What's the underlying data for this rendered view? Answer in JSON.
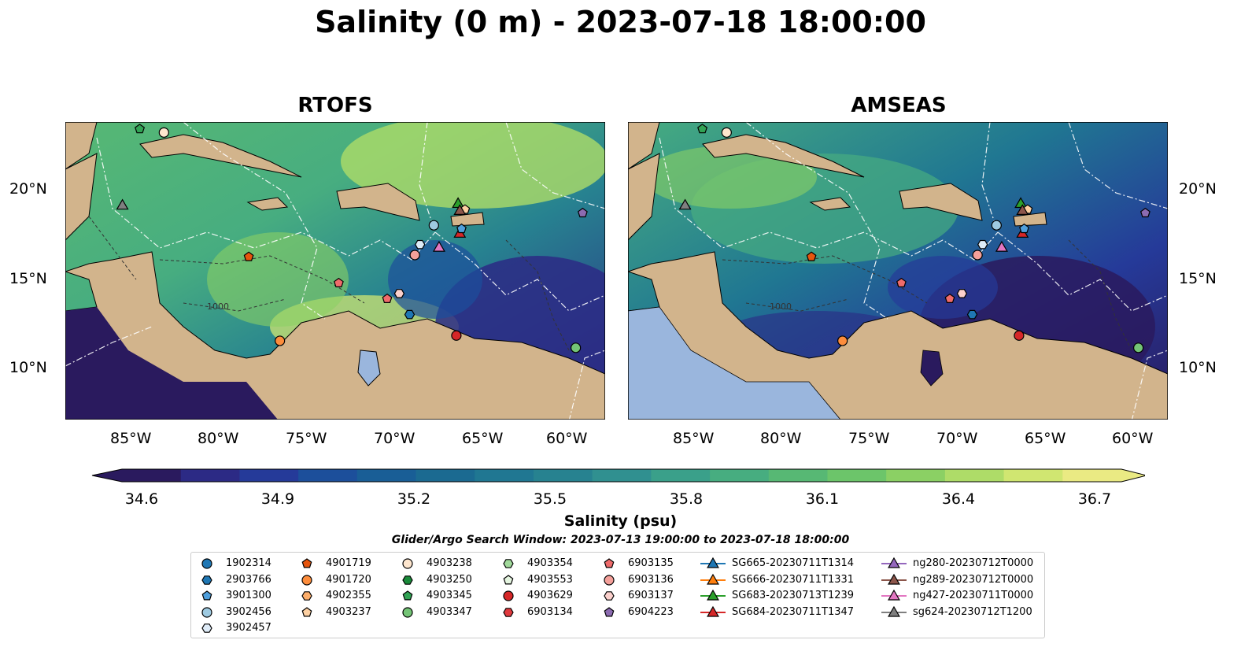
{
  "title": "Salinity (0 m) - 2023-07-18 18:00:00",
  "panels": [
    {
      "title": "RTOFS"
    },
    {
      "title": "AMSEAS"
    }
  ],
  "axes": {
    "lat_labels": [
      "20°N",
      "15°N",
      "10°N"
    ],
    "lon_labels": [
      "85°W",
      "80°W",
      "75°W",
      "70°W",
      "65°W",
      "60°W"
    ]
  },
  "colorbar": {
    "label": "Salinity (psu)",
    "vmin": 34.6,
    "vmax": 36.7,
    "ticks": [
      "34.6",
      "34.9",
      "35.2",
      "35.5",
      "35.8",
      "36.1",
      "36.4",
      "36.7"
    ],
    "colors": [
      "#2a1a5e",
      "#2c2a85",
      "#253a99",
      "#1c4f9b",
      "#195e96",
      "#1b6a91",
      "#207792",
      "#278290",
      "#309090",
      "#3aa08a",
      "#47ad80",
      "#57b874",
      "#6cc56a",
      "#8bd064",
      "#aedc68",
      "#d0e671",
      "#eaea83"
    ],
    "extend": "both"
  },
  "map_colors": {
    "land": "#d2b48c",
    "lakes": "#9ab6dd",
    "contours": "#333333",
    "eez": "#ffffff"
  },
  "subtitle": "Glider/Argo Search Window: 2023-07-13 19:00:00 to 2023-07-18 18:00:00",
  "contour_label": "1000",
  "legend": [
    {
      "label": "1902314",
      "marker": "circle",
      "color": "#1f77b4"
    },
    {
      "label": "2903766",
      "marker": "hexagon",
      "color": "#1f77b4"
    },
    {
      "label": "3901300",
      "marker": "pentagon",
      "color": "#4f9fdc"
    },
    {
      "label": "3902456",
      "marker": "circle",
      "color": "#9ecae1"
    },
    {
      "label": "3902457",
      "marker": "hexagon",
      "color": "#deebf7"
    },
    {
      "label": "4901719",
      "marker": "pentagon",
      "color": "#e6550d"
    },
    {
      "label": "4901720",
      "marker": "circle",
      "color": "#fd8d3c"
    },
    {
      "label": "4902355",
      "marker": "hexagon",
      "color": "#fdae6b"
    },
    {
      "label": "4903237",
      "marker": "pentagon",
      "color": "#fdd0a2"
    },
    {
      "label": "4903238",
      "marker": "circle",
      "color": "#fee6ce"
    },
    {
      "label": "4903250",
      "marker": "hexagon",
      "color": "#1a8a3a"
    },
    {
      "label": "4903345",
      "marker": "pentagon",
      "color": "#31a354"
    },
    {
      "label": "4903347",
      "marker": "circle",
      "color": "#74c476"
    },
    {
      "label": "4903354",
      "marker": "hexagon",
      "color": "#a1d99b"
    },
    {
      "label": "4903553",
      "marker": "pentagon",
      "color": "#e5f5e0"
    },
    {
      "label": "4903629",
      "marker": "circle",
      "color": "#d62728"
    },
    {
      "label": "6903134",
      "marker": "hexagon",
      "color": "#e0393e"
    },
    {
      "label": "6903135",
      "marker": "pentagon",
      "color": "#ef6b6b"
    },
    {
      "label": "6903136",
      "marker": "circle",
      "color": "#f4a09a"
    },
    {
      "label": "6903137",
      "marker": "hexagon",
      "color": "#fbd0cc"
    },
    {
      "label": "6904223",
      "marker": "pentagon",
      "color": "#8c6bb1"
    },
    {
      "label": "SG665-20230711T1314",
      "marker": "triangle-line",
      "color": "#1f77b4"
    },
    {
      "label": "SG666-20230711T1331",
      "marker": "triangle-line",
      "color": "#ff7f0e"
    },
    {
      "label": "SG683-20230713T1239",
      "marker": "triangle-line",
      "color": "#2ca02c"
    },
    {
      "label": "SG684-20230711T1347",
      "marker": "triangle-line",
      "color": "#d62728"
    },
    {
      "label": "ng280-20230712T0000",
      "marker": "triangle-line",
      "color": "#9467bd"
    },
    {
      "label": "ng289-20230712T0000",
      "marker": "triangle-line",
      "color": "#8c564b"
    },
    {
      "label": "ng427-20230711T0000",
      "marker": "triangle-line",
      "color": "#e377c2"
    },
    {
      "label": "sg624-20230712T1200",
      "marker": "triangle-line",
      "color": "#7f7f7f"
    }
  ],
  "platforms": [
    {
      "id": "4903238",
      "lon": -83.8,
      "lat": 23.4
    },
    {
      "id": "4903345",
      "lon": -85.2,
      "lat": 23.6
    },
    {
      "id": "sg624-20230712T1200",
      "lon": -86.2,
      "lat": 19.2
    },
    {
      "id": "4901719",
      "lon": -78.9,
      "lat": 16.3
    },
    {
      "id": "4901720",
      "lon": -77.1,
      "lat": 11.5
    },
    {
      "id": "6903135",
      "lon": -73.7,
      "lat": 14.8
    },
    {
      "id": "6903135",
      "lon": -70.9,
      "lat": 13.9
    },
    {
      "id": "6903137",
      "lon": -70.2,
      "lat": 14.2
    },
    {
      "id": "2903766",
      "lon": -69.6,
      "lat": 13.0
    },
    {
      "id": "6903136",
      "lon": -69.3,
      "lat": 16.4
    },
    {
      "id": "3902457",
      "lon": -69.0,
      "lat": 17.0
    },
    {
      "id": "3902456",
      "lon": -68.2,
      "lat": 18.1
    },
    {
      "id": "ng427-20230711T0000",
      "lon": -67.9,
      "lat": 16.8
    },
    {
      "id": "4903629",
      "lon": -66.9,
      "lat": 11.8
    },
    {
      "id": "SG683-20230713T1239",
      "lon": -66.8,
      "lat": 19.3
    },
    {
      "id": "4903237",
      "lon": -66.4,
      "lat": 19.0
    },
    {
      "id": "ng289-20230712T0000",
      "lon": -66.7,
      "lat": 18.9
    },
    {
      "id": "SG684-20230711T1347",
      "lon": -66.7,
      "lat": 17.6
    },
    {
      "id": "3901300",
      "lon": -66.6,
      "lat": 17.9
    },
    {
      "id": "6904223",
      "lon": -59.6,
      "lat": 18.8
    },
    {
      "id": "4903347",
      "lon": -60.0,
      "lat": 11.1
    }
  ]
}
